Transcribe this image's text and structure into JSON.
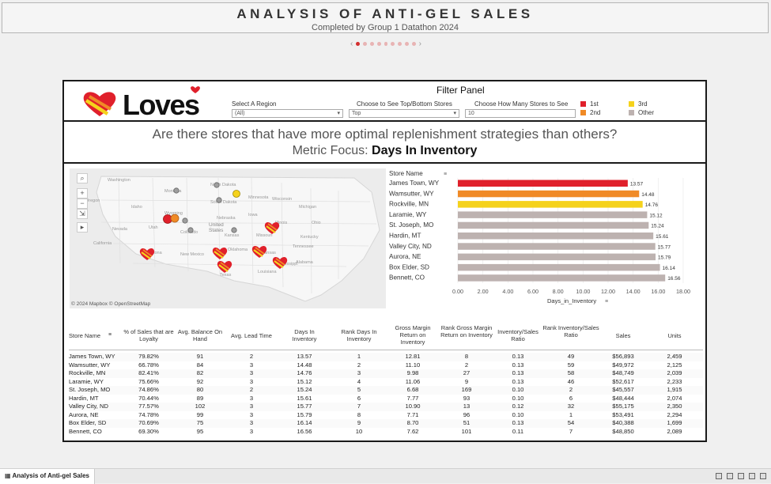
{
  "title": "ANALYSIS OF ANTI-GEL SALES",
  "subtitle": "Completed by Group 1 Datathon 2024",
  "pager": {
    "prev": "‹",
    "next": "›",
    "dots": 9,
    "active": 0
  },
  "logo_text": "Loves",
  "filter": {
    "title": "Filter Panel",
    "region_label": "Select A Region",
    "region_value": "(All)",
    "topbottom_label": "Choose to See Top/Bottom Stores",
    "topbottom_value": "Top",
    "count_label": "Choose How Many Stores to See",
    "count_value": "10",
    "legend": [
      {
        "label": "1st",
        "color": "#e0202b"
      },
      {
        "label": "2nd",
        "color": "#f08a26"
      },
      {
        "label": "3rd",
        "color": "#f5d21c"
      },
      {
        "label": "Other",
        "color": "#bdb2b0"
      }
    ]
  },
  "question": {
    "line1": "Are there stores that have more optimal replenishment strategies than others?",
    "prefix": "Metric Focus: ",
    "metric": "Days In Inventory"
  },
  "map": {
    "credit": "© 2024 Mapbox © OpenStreetMap",
    "tools": [
      "⌕",
      "+",
      "−",
      "⇲",
      "▸"
    ],
    "labels": [
      "Washington",
      "Oregon",
      "Idaho",
      "Wyoming",
      "Nevada",
      "Utah",
      "Colorado",
      "California",
      "Arizona",
      "New Mexico",
      "Texas",
      "Kansas",
      "Oklahoma",
      "Missouri",
      "Illinois",
      "Minnesota",
      "North Dakota",
      "South Dakota",
      "Nebraska",
      "Iowa",
      "Wisconsin",
      "Michigan",
      "United States",
      "Montana",
      "Ohio",
      "Tennessee",
      "Arkansas",
      "Louisiana",
      "Mississippi",
      "Alabama",
      "Kentucky"
    ]
  },
  "chart_data": {
    "type": "bar",
    "orientation": "horizontal",
    "header": "Store Name",
    "categories": [
      "James Town, WY",
      "Wamsutter, WY",
      "Rockville, MN",
      "Laramie, WY",
      "St. Joseph, MO",
      "Hardin, MT",
      "Valley City, ND",
      "Aurora, NE",
      "Box Elder, SD",
      "Bennett, CO"
    ],
    "values": [
      13.57,
      14.48,
      14.76,
      15.12,
      15.24,
      15.61,
      15.77,
      15.79,
      16.14,
      16.56
    ],
    "value_labels": [
      "13.57",
      "14.48",
      "14.76",
      "15.12",
      "15.24",
      "15.61",
      "15.77",
      "15.79",
      "16.14",
      "16.56"
    ],
    "colors": [
      "#e0202b",
      "#f08a26",
      "#f5d21c",
      "#bdb2b0",
      "#bdb2b0",
      "#bdb2b0",
      "#bdb2b0",
      "#bdb2b0",
      "#bdb2b0",
      "#bdb2b0"
    ],
    "xlabel": "Days_in_Inventory",
    "xticks": [
      "0.00",
      "2.00",
      "4.00",
      "6.00",
      "8.00",
      "10.00",
      "12.00",
      "14.00",
      "16.00",
      "18.00"
    ],
    "xlim": [
      0,
      18
    ]
  },
  "table": {
    "headers": [
      "Store Name",
      "% of Sales that are Loyalty",
      "Avg. Balance On Hand",
      "Avg. Lead Time",
      "Days In Inventory",
      "Rank Days In Inventory",
      "Gross Margin Return on Inventory",
      "Rank Gross Margin Return on Inventory",
      "Inventory/Sales Ratio",
      "Rank Inventory/Sales Ratio",
      "Sales",
      "Units"
    ],
    "rows": [
      [
        "James Town, WY",
        "79.82%",
        "91",
        "2",
        "13.57",
        "1",
        "12.81",
        "8",
        "0.13",
        "49",
        "$56,893",
        "2,459"
      ],
      [
        "Wamsutter, WY",
        "66.78%",
        "84",
        "3",
        "14.48",
        "2",
        "11.10",
        "2",
        "0.13",
        "59",
        "$49,972",
        "2,125"
      ],
      [
        "Rockville, MN",
        "82.41%",
        "82",
        "3",
        "14.76",
        "3",
        "9.98",
        "27",
        "0.13",
        "58",
        "$48,749",
        "2,039"
      ],
      [
        "Laramie, WY",
        "75.66%",
        "92",
        "3",
        "15.12",
        "4",
        "11.06",
        "9",
        "0.13",
        "46",
        "$52,617",
        "2,233"
      ],
      [
        "St. Joseph, MO",
        "74.86%",
        "80",
        "2",
        "15.24",
        "5",
        "6.68",
        "169",
        "0.10",
        "2",
        "$45,557",
        "1,915"
      ],
      [
        "Hardin, MT",
        "70.44%",
        "89",
        "3",
        "15.61",
        "6",
        "7.77",
        "93",
        "0.10",
        "6",
        "$48,444",
        "2,074"
      ],
      [
        "Valley City, ND",
        "77.57%",
        "102",
        "3",
        "15.77",
        "7",
        "10.90",
        "13",
        "0.12",
        "32",
        "$55,175",
        "2,350"
      ],
      [
        "Aurora, NE",
        "74.78%",
        "99",
        "3",
        "15.79",
        "8",
        "7.71",
        "96",
        "0.10",
        "1",
        "$53,491",
        "2,294"
      ],
      [
        "Box Elder, SD",
        "70.69%",
        "75",
        "3",
        "16.14",
        "9",
        "8.70",
        "51",
        "0.13",
        "54",
        "$40,388",
        "1,699"
      ],
      [
        "Bennett, CO",
        "69.30%",
        "95",
        "3",
        "16.56",
        "10",
        "7.62",
        "101",
        "0.11",
        "7",
        "$48,850",
        "2,089"
      ]
    ]
  },
  "footer": {
    "tab": "Analysis of Anti-gel Sales"
  }
}
